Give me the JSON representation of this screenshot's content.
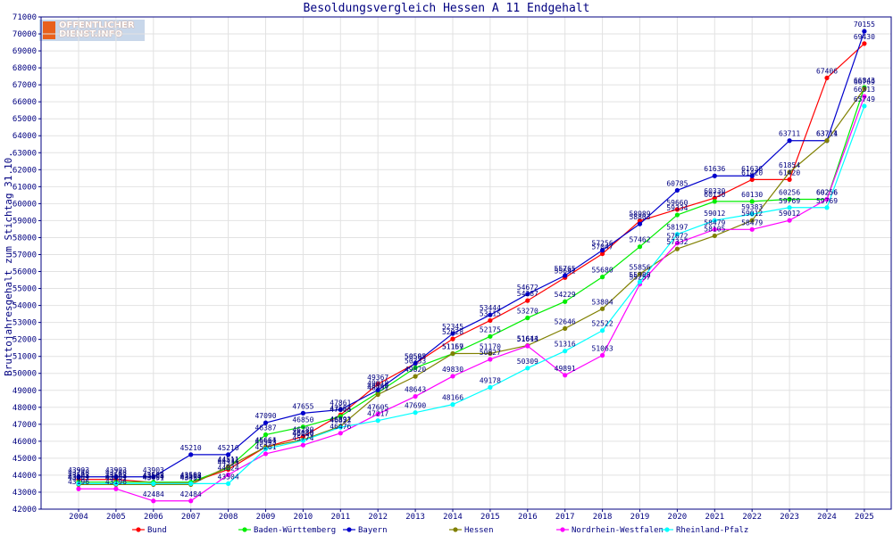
{
  "chart_data": {
    "type": "line",
    "title": "Besoldungsvergleich Hessen A 11 Endgehalt",
    "xlabel": "",
    "ylabel": "Bruttojahresgehalt zum Stichtag 31.10.",
    "x": [
      "2004",
      "2005",
      "2006",
      "2007",
      "2008",
      "2009",
      "2010",
      "2011",
      "2012",
      "2013",
      "2014",
      "2015",
      "2016",
      "2017",
      "2018",
      "2019",
      "2020",
      "2021",
      "2022",
      "2023",
      "2024",
      "2025"
    ],
    "ylim": [
      42000,
      71000
    ],
    "yticks": [
      42000,
      43000,
      44000,
      45000,
      46000,
      47000,
      48000,
      49000,
      50000,
      51000,
      52000,
      53000,
      54000,
      55000,
      56000,
      57000,
      58000,
      59000,
      60000,
      61000,
      62000,
      63000,
      64000,
      65000,
      66000,
      67000,
      68000,
      69000,
      70000,
      71000
    ],
    "grid": true,
    "legend_position": "bottom",
    "series": [
      {
        "name": "Bund",
        "color": "#ff0000",
        "values": [
          43748,
          43748,
          43568,
          43568,
          44335,
          45664,
          46280,
          47554,
          49367,
          50583,
          52028,
          53115,
          54287,
          55642,
          57047,
          58989,
          59660,
          60330,
          61420,
          61420,
          67406,
          69430
        ]
      },
      {
        "name": "Baden-Württemberg",
        "color": "#00ee00",
        "values": [
          43593,
          43593,
          43593,
          43593,
          44431,
          46387,
          46850,
          47466,
          48860,
          50333,
          51157,
          52175,
          53270,
          54229,
          55680,
          57462,
          59334,
          60130,
          60130,
          60256,
          60256,
          66843
        ]
      },
      {
        "name": "Bayern",
        "color": "#0000cc",
        "values": [
          43903,
          43903,
          43903,
          45210,
          45210,
          47090,
          47655,
          47861,
          49018,
          50595,
          52345,
          53444,
          54672,
          55765,
          57256,
          58803,
          60785,
          61636,
          61636,
          63711,
          63711,
          70155
        ]
      },
      {
        "name": "Hessen",
        "color": "#808000",
        "values": [
          43451,
          43451,
          43451,
          43451,
          44511,
          45661,
          46089,
          46891,
          48751,
          49820,
          51169,
          51170,
          51644,
          52646,
          53804,
          55856,
          57332,
          58105,
          59012,
          61854,
          63714,
          66769
        ]
      },
      {
        "name": "Nordrhein-Westfalen",
        "color": "#ff00ff",
        "values": [
          43196,
          43196,
          42484,
          42484,
          44024,
          45261,
          45774,
          46476,
          47605,
          48643,
          49830,
          50827,
          51613,
          49891,
          51063,
          55257,
          57672,
          58479,
          58479,
          59012,
          60256,
          66313
        ]
      },
      {
        "name": "Rheinland-Pfalz",
        "color": "#00ffff",
        "values": [
          43504,
          43504,
          43504,
          43504,
          43504,
          45543,
          46040,
          46822,
          47217,
          47690,
          48166,
          49178,
          50309,
          51316,
          52522,
          55388,
          58197,
          59012,
          59383,
          59769,
          59769,
          65749
        ]
      }
    ]
  },
  "logo": {
    "line1": "OFFENTLICHER",
    "line2": "DIENST.INFO"
  }
}
